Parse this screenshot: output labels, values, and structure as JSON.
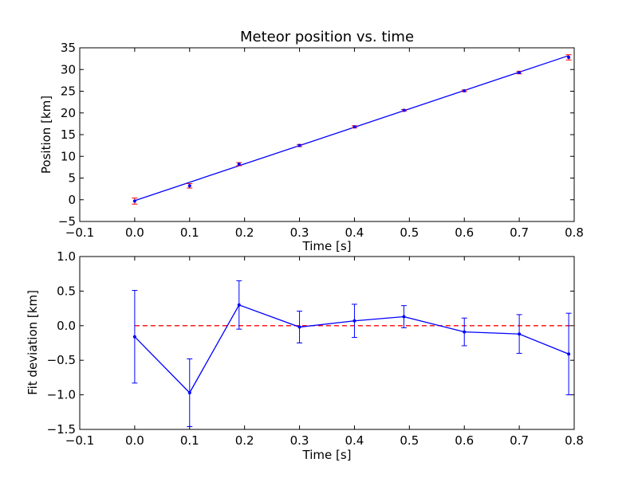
{
  "chart_data": [
    {
      "type": "scatter",
      "title": "Meteor position vs. time",
      "xlabel": "Time [s]",
      "ylabel": "Position [km]",
      "xlim": [
        -0.1,
        0.8
      ],
      "ylim": [
        -5,
        35
      ],
      "xticks": [
        -0.1,
        0.0,
        0.1,
        0.2,
        0.3,
        0.4,
        0.5,
        0.6,
        0.7,
        0.8
      ],
      "xtick_labels": [
        "−0.1",
        "0.0",
        "0.1",
        "0.2",
        "0.3",
        "0.4",
        "0.5",
        "0.6",
        "0.7",
        "0.8"
      ],
      "yticks": [
        -5,
        0,
        5,
        10,
        15,
        20,
        25,
        30,
        35
      ],
      "ytick_labels": [
        "−5",
        "0",
        "5",
        "10",
        "15",
        "20",
        "25",
        "30",
        "35"
      ],
      "grid": false,
      "series": [
        {
          "kind": "points-with-errorbars",
          "color": "#ff0000",
          "marker_color": "#0000ff",
          "x": [
            0.0,
            0.1,
            0.19,
            0.3,
            0.4,
            0.49,
            0.6,
            0.7,
            0.79
          ],
          "y": [
            -0.3,
            3.2,
            8.2,
            12.5,
            16.8,
            20.6,
            25.1,
            29.3,
            32.8
          ],
          "yerr": [
            0.7,
            0.5,
            0.35,
            0.25,
            0.25,
            0.2,
            0.2,
            0.3,
            0.6
          ]
        },
        {
          "kind": "fit-line",
          "color": "#0000ff",
          "x": [
            0.0,
            0.79
          ],
          "y": [
            -0.2,
            33.2
          ]
        }
      ]
    },
    {
      "type": "line",
      "xlabel": "Time [s]",
      "ylabel": "Fit deviation [km]",
      "xlim": [
        -0.1,
        0.8
      ],
      "ylim": [
        -1.5,
        1.0
      ],
      "xticks": [
        -0.1,
        0.0,
        0.1,
        0.2,
        0.3,
        0.4,
        0.5,
        0.6,
        0.7,
        0.8
      ],
      "xtick_labels": [
        "−0.1",
        "0.0",
        "0.1",
        "0.2",
        "0.3",
        "0.4",
        "0.5",
        "0.6",
        "0.7",
        "0.8"
      ],
      "yticks": [
        -1.5,
        -1.0,
        -0.5,
        0.0,
        0.5,
        1.0
      ],
      "ytick_labels": [
        "−1.5",
        "−1.0",
        "−0.5",
        "0.0",
        "0.5",
        "1.0"
      ],
      "grid": false,
      "series": [
        {
          "kind": "line-with-errorbars",
          "color": "#0000ff",
          "x": [
            0.0,
            0.1,
            0.19,
            0.3,
            0.4,
            0.49,
            0.6,
            0.7,
            0.79
          ],
          "y": [
            -0.16,
            -0.97,
            0.3,
            -0.02,
            0.07,
            0.13,
            -0.09,
            -0.12,
            -0.41
          ],
          "yerr": [
            0.67,
            0.49,
            0.35,
            0.23,
            0.24,
            0.16,
            0.2,
            0.28,
            0.59
          ]
        },
        {
          "kind": "reference-line",
          "color": "#ff0000",
          "dashed": true,
          "y": 0.0
        }
      ]
    }
  ]
}
